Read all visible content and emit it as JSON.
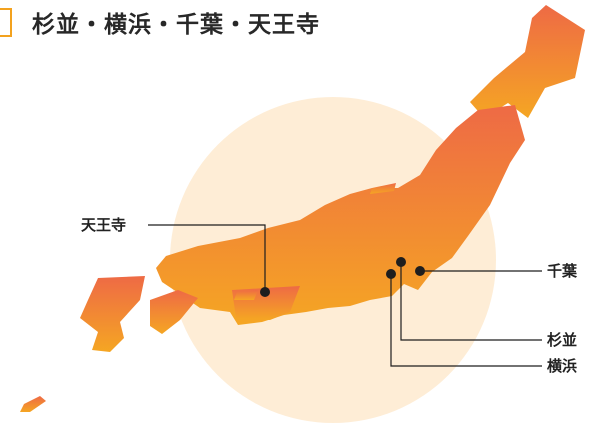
{
  "title": "杉並・横浜・千葉・天王寺",
  "locations": {
    "tennoji": "天王寺",
    "chiba": "千葉",
    "suginami": "杉並",
    "yokohama": "横浜"
  },
  "colors": {
    "map_top": "#ee6a45",
    "map_bottom": "#f5a623",
    "halo": "#fde7c8",
    "marker": "#1e1e1e",
    "title_accent": "#f3a21e"
  }
}
